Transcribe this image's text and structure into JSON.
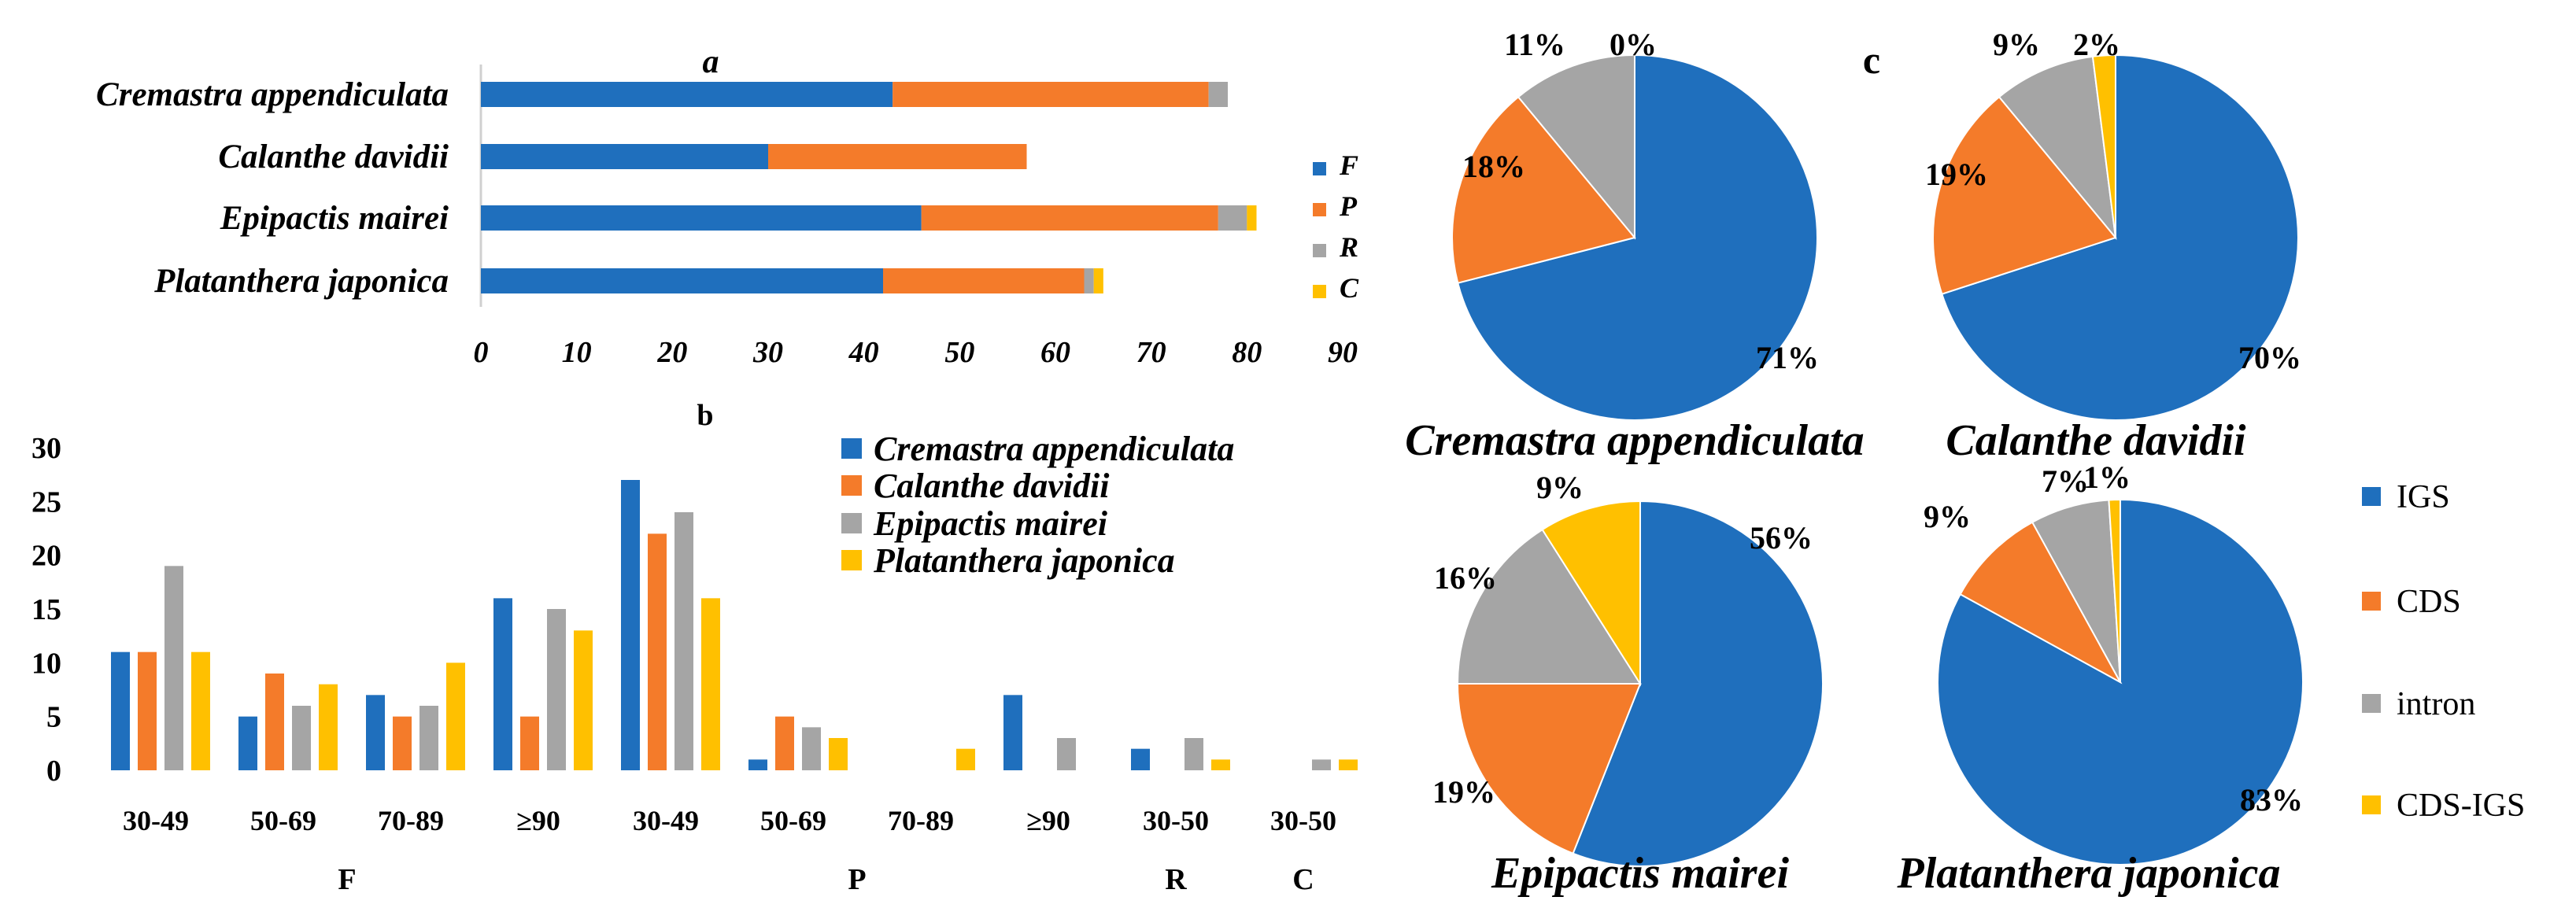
{
  "colors": {
    "F": "#1f6fbd",
    "P": "#f47b2a",
    "R": "#a5a5a5",
    "C": "#ffc000",
    "IGS": "#1f6fbd",
    "CDS": "#f47b2a",
    "intron": "#a5a5a5",
    "CDS-IGS": "#ffc000",
    "axis": "#d0d0d0",
    "text": "#000000"
  },
  "chart_data": [
    {
      "id": "a",
      "type": "bar",
      "orientation": "horizontal",
      "stacked": true,
      "panel_label": "a",
      "categories": [
        "Cremastra appendiculata",
        "Calanthe davidii",
        "Epipactis mairei",
        "Platanthera japonica"
      ],
      "series": [
        {
          "name": "F",
          "values": [
            43,
            30,
            46,
            42
          ]
        },
        {
          "name": "P",
          "values": [
            33,
            27,
            31,
            21
          ]
        },
        {
          "name": "R",
          "values": [
            2,
            0,
            3,
            1
          ]
        },
        {
          "name": "C",
          "values": [
            0,
            0,
            1,
            1
          ]
        }
      ],
      "xlim": [
        0,
        90
      ],
      "xticks": [
        "0",
        "10",
        "20",
        "30",
        "40",
        "50",
        "60",
        "70",
        "80",
        "90"
      ],
      "legend": [
        "F",
        "P",
        "R",
        "C"
      ],
      "legend_position": "right"
    },
    {
      "id": "b",
      "type": "bar",
      "orientation": "vertical",
      "panel_label": "b",
      "categories": [
        "30-49",
        "50-69",
        "70-89",
        "≥90",
        "30-49",
        "50-69",
        "70-89",
        "≥90",
        "30-50",
        "30-50"
      ],
      "groups": [
        {
          "label": "F",
          "span": [
            0,
            3
          ]
        },
        {
          "label": "P",
          "span": [
            4,
            7
          ]
        },
        {
          "label": "R",
          "span": [
            8,
            8
          ]
        },
        {
          "label": "C",
          "span": [
            9,
            9
          ]
        }
      ],
      "series": [
        {
          "name": "Cremastra appendiculata",
          "values": [
            11,
            5,
            7,
            16,
            27,
            1,
            0,
            7,
            2,
            0
          ]
        },
        {
          "name": "Calanthe davidii",
          "values": [
            11,
            9,
            5,
            5,
            22,
            5,
            0,
            0,
            0,
            0
          ]
        },
        {
          "name": "Epipactis mairei",
          "values": [
            19,
            6,
            6,
            15,
            24,
            4,
            0,
            3,
            3,
            1
          ]
        },
        {
          "name": "Platanthera japonica",
          "values": [
            11,
            8,
            10,
            13,
            16,
            3,
            2,
            0,
            1,
            1
          ]
        }
      ],
      "ylim": [
        0,
        30
      ],
      "yticks": [
        "0",
        "5",
        "10",
        "15",
        "20",
        "25",
        "30"
      ],
      "legend_position": "top-right"
    },
    {
      "id": "c",
      "type": "pie",
      "panel_label": "c",
      "legend": [
        "IGS",
        "CDS",
        "intron",
        "CDS-IGS"
      ],
      "pies": [
        {
          "title": "Cremastra appendiculata",
          "values": [
            71,
            18,
            11,
            0
          ],
          "labels": [
            "71%",
            "18%",
            "11%",
            "0%"
          ]
        },
        {
          "title": "Calanthe davidii",
          "values": [
            70,
            19,
            9,
            2
          ],
          "labels": [
            "70%",
            "19%",
            "9%",
            "2%"
          ]
        },
        {
          "title": "Epipactis mairei",
          "values": [
            56,
            19,
            16,
            9
          ],
          "labels": [
            "56%",
            "19%",
            "16%",
            "9%"
          ]
        },
        {
          "title": "Platanthera japonica",
          "values": [
            83,
            9,
            7,
            1
          ],
          "labels": [
            "83%",
            "9%",
            "7%",
            "1%"
          ]
        }
      ]
    }
  ]
}
